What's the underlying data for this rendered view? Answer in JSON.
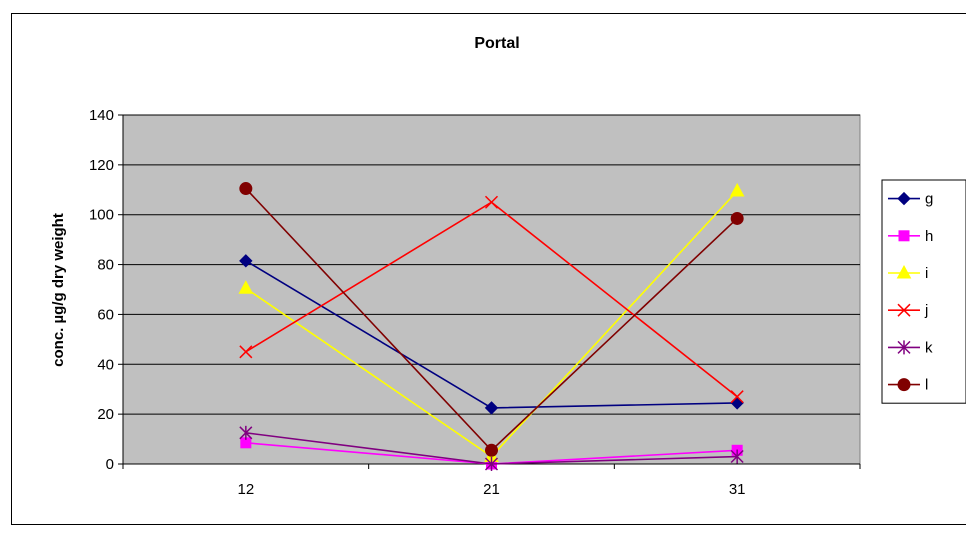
{
  "chart_data": {
    "type": "line",
    "title": "Portal",
    "xlabel": "",
    "ylabel": "conc. µg/g dry weight",
    "categories": [
      "12",
      "21",
      "31"
    ],
    "ylim": [
      0,
      140
    ],
    "yticks": [
      0,
      20,
      40,
      60,
      80,
      100,
      120,
      140
    ],
    "grid": true,
    "legend_position": "right",
    "plot_background": "#c0c0c0",
    "series": [
      {
        "name": "g",
        "values": [
          81.5,
          22.5,
          24.5
        ],
        "color": "#000080",
        "marker": "diamond"
      },
      {
        "name": "h",
        "values": [
          8.5,
          0,
          5.5
        ],
        "color": "#ff00ff",
        "marker": "square"
      },
      {
        "name": "i",
        "values": [
          70.5,
          3,
          109.5
        ],
        "color": "#ffff00",
        "marker": "triangle"
      },
      {
        "name": "j",
        "values": [
          45,
          105,
          27
        ],
        "color": "#ff0000",
        "marker": "x"
      },
      {
        "name": "k",
        "values": [
          12.5,
          0,
          3
        ],
        "color": "#800080",
        "marker": "star"
      },
      {
        "name": "l",
        "values": [
          110.5,
          5.5,
          98.5
        ],
        "color": "#800000",
        "marker": "circle"
      }
    ]
  }
}
